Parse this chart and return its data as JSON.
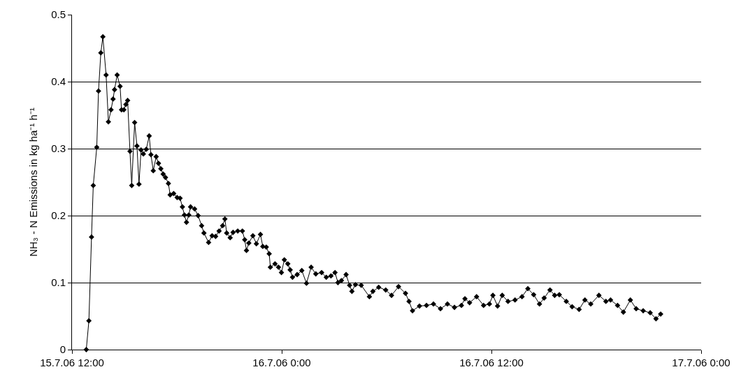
{
  "chart_data": {
    "type": "line",
    "ylabel": "NH₃ - N Emissions in kg ha⁻¹ h⁻¹",
    "marker": "diamond",
    "line_style": "solid",
    "grid": "y",
    "xlim": [
      "--07-15T12:00",
      "--07-17T00:00"
    ],
    "xticks": [
      {
        "value": "--07-15T12:00",
        "label": "15.7.06 12:00"
      },
      {
        "value": "--07-16T00:00",
        "label": "16.7.06 0:00"
      },
      {
        "value": "--07-16T12:00",
        "label": "16.7.06 12:00"
      },
      {
        "value": "--07-17T00:00",
        "label": "17.7.06 0:00"
      }
    ],
    "ylim": [
      0,
      0.5
    ],
    "yticks": [
      0,
      0.1,
      0.2,
      0.3,
      0.4,
      0.5
    ],
    "x": [
      "--07-15T12:49",
      "--07-15T12:58",
      "--07-15T13:07",
      "--07-15T13:13",
      "--07-15T13:25",
      "--07-15T13:31",
      "--07-15T13:39",
      "--07-15T13:46",
      "--07-15T13:57",
      "--07-15T14:05",
      "--07-15T14:14",
      "--07-15T14:21",
      "--07-15T14:26",
      "--07-15T14:35",
      "--07-15T14:45",
      "--07-15T14:50",
      "--07-15T14:58",
      "--07-15T15:05",
      "--07-15T15:11",
      "--07-15T15:19",
      "--07-15T15:25",
      "--07-15T15:35",
      "--07-15T15:43",
      "--07-15T15:50",
      "--07-15T15:57",
      "--07-15T16:05",
      "--07-15T16:15",
      "--07-15T16:25",
      "--07-15T16:31",
      "--07-15T16:39",
      "--07-15T16:49",
      "--07-15T16:57",
      "--07-15T17:05",
      "--07-15T17:13",
      "--07-15T17:21",
      "--07-15T17:31",
      "--07-15T17:37",
      "--07-15T17:49",
      "--07-15T18:01",
      "--07-15T18:11",
      "--07-15T18:19",
      "--07-15T18:26",
      "--07-15T18:33",
      "--07-15T18:41",
      "--07-15T18:47",
      "--07-15T19:01",
      "--07-15T19:13",
      "--07-15T19:25",
      "--07-15T19:33",
      "--07-15T19:49",
      "--07-15T20:01",
      "--07-15T20:13",
      "--07-15T20:25",
      "--07-15T20:37",
      "--07-15T20:45",
      "--07-15T20:51",
      "--07-15T21:03",
      "--07-15T21:13",
      "--07-15T21:29",
      "--07-15T21:45",
      "--07-15T21:53",
      "--07-15T21:59",
      "--07-15T22:07",
      "--07-15T22:21",
      "--07-15T22:33",
      "--07-15T22:47",
      "--07-15T22:55",
      "--07-15T23:07",
      "--07-15T23:17",
      "--07-15T23:21",
      "--07-15T23:37",
      "--07-15T23:49",
      "--07-15T23:59",
      "--07-16T00:09",
      "--07-16T00:21",
      "--07-16T00:29",
      "--07-16T00:37",
      "--07-16T00:53",
      "--07-16T01:09",
      "--07-16T01:25",
      "--07-16T01:41",
      "--07-16T01:57",
      "--07-16T02:17",
      "--07-16T02:33",
      "--07-16T02:49",
      "--07-16T03:03",
      "--07-16T03:13",
      "--07-16T03:25",
      "--07-16T03:41",
      "--07-16T03:53",
      "--07-16T04:01",
      "--07-16T04:13",
      "--07-16T04:33",
      "--07-16T05:01",
      "--07-16T05:13",
      "--07-16T05:33",
      "--07-16T05:57",
      "--07-16T06:17",
      "--07-16T06:41",
      "--07-16T07:05",
      "--07-16T07:17",
      "--07-16T07:29",
      "--07-16T07:53",
      "--07-16T08:17",
      "--07-16T08:41",
      "--07-16T09:05",
      "--07-16T09:29",
      "--07-16T09:53",
      "--07-16T10:17",
      "--07-16T10:29",
      "--07-16T10:45",
      "--07-16T11:09",
      "--07-16T11:33",
      "--07-16T11:53",
      "--07-16T12:05",
      "--07-16T12:21",
      "--07-16T12:37",
      "--07-16T12:57",
      "--07-16T13:21",
      "--07-16T13:45",
      "--07-16T14:05",
      "--07-16T14:25",
      "--07-16T14:45",
      "--07-16T15:01",
      "--07-16T15:21",
      "--07-16T15:37",
      "--07-16T15:53",
      "--07-16T16:17",
      "--07-16T16:37",
      "--07-16T17:01",
      "--07-16T17:21",
      "--07-16T17:41",
      "--07-16T18:09",
      "--07-16T18:33",
      "--07-16T18:49",
      "--07-16T19:13",
      "--07-16T19:33",
      "--07-16T19:57",
      "--07-16T20:17",
      "--07-16T20:41",
      "--07-16T21:05",
      "--07-16T21:25",
      "--07-16T21:41"
    ],
    "series": [
      {
        "color": "#000000",
        "values": [
          0.0,
          0.043,
          0.168,
          0.245,
          0.302,
          0.386,
          0.443,
          0.467,
          0.41,
          0.34,
          0.358,
          0.374,
          0.388,
          0.41,
          0.393,
          0.358,
          0.358,
          0.366,
          0.372,
          0.296,
          0.245,
          0.339,
          0.304,
          0.247,
          0.298,
          0.292,
          0.299,
          0.319,
          0.291,
          0.267,
          0.288,
          0.278,
          0.27,
          0.262,
          0.257,
          0.248,
          0.231,
          0.233,
          0.227,
          0.226,
          0.213,
          0.201,
          0.19,
          0.201,
          0.213,
          0.21,
          0.2,
          0.185,
          0.174,
          0.16,
          0.17,
          0.169,
          0.177,
          0.185,
          0.195,
          0.174,
          0.167,
          0.175,
          0.177,
          0.177,
          0.164,
          0.148,
          0.159,
          0.17,
          0.158,
          0.172,
          0.154,
          0.153,
          0.143,
          0.123,
          0.128,
          0.123,
          0.115,
          0.134,
          0.128,
          0.119,
          0.108,
          0.112,
          0.118,
          0.099,
          0.123,
          0.113,
          0.115,
          0.108,
          0.11,
          0.115,
          0.1,
          0.103,
          0.112,
          0.096,
          0.087,
          0.097,
          0.096,
          0.079,
          0.087,
          0.093,
          0.089,
          0.081,
          0.094,
          0.084,
          0.072,
          0.058,
          0.065,
          0.066,
          0.068,
          0.061,
          0.068,
          0.063,
          0.066,
          0.076,
          0.07,
          0.079,
          0.066,
          0.068,
          0.081,
          0.065,
          0.081,
          0.072,
          0.074,
          0.079,
          0.091,
          0.082,
          0.068,
          0.077,
          0.089,
          0.081,
          0.082,
          0.072,
          0.064,
          0.06,
          0.074,
          0.068,
          0.081,
          0.072,
          0.074,
          0.066,
          0.056,
          0.074,
          0.061,
          0.058,
          0.055,
          0.046,
          0.053
        ]
      }
    ]
  }
}
